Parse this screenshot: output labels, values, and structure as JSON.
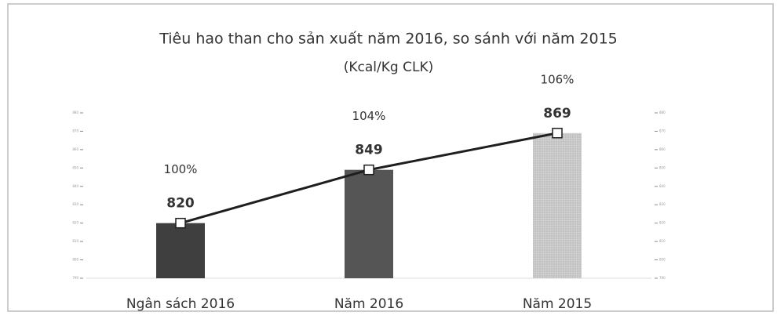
{
  "chart_data": {
    "type": "bar",
    "title": "Tiêu hao than cho sản xuất năm 2016, so sánh với năm 2015",
    "subtitle": "(Kcal/Kg CLK)",
    "categories": [
      "Ngân sách 2016",
      "Năm 2016",
      "Năm 2015"
    ],
    "values": [
      820,
      849,
      869
    ],
    "bar_colors": [
      "#3f3f3f",
      "#555555",
      "#cfcfcf"
    ],
    "line_color": "#1e1e1e",
    "annotations": [
      "100%",
      "104%",
      "106%"
    ],
    "ylim": [
      790,
      880
    ],
    "yticks": [
      790,
      800,
      810,
      820,
      830,
      840,
      850,
      860,
      870,
      880
    ],
    "y2lim": [
      790,
      880
    ],
    "y2ticks": [
      790,
      800,
      810,
      820,
      830,
      840,
      850,
      860,
      870,
      880
    ]
  }
}
